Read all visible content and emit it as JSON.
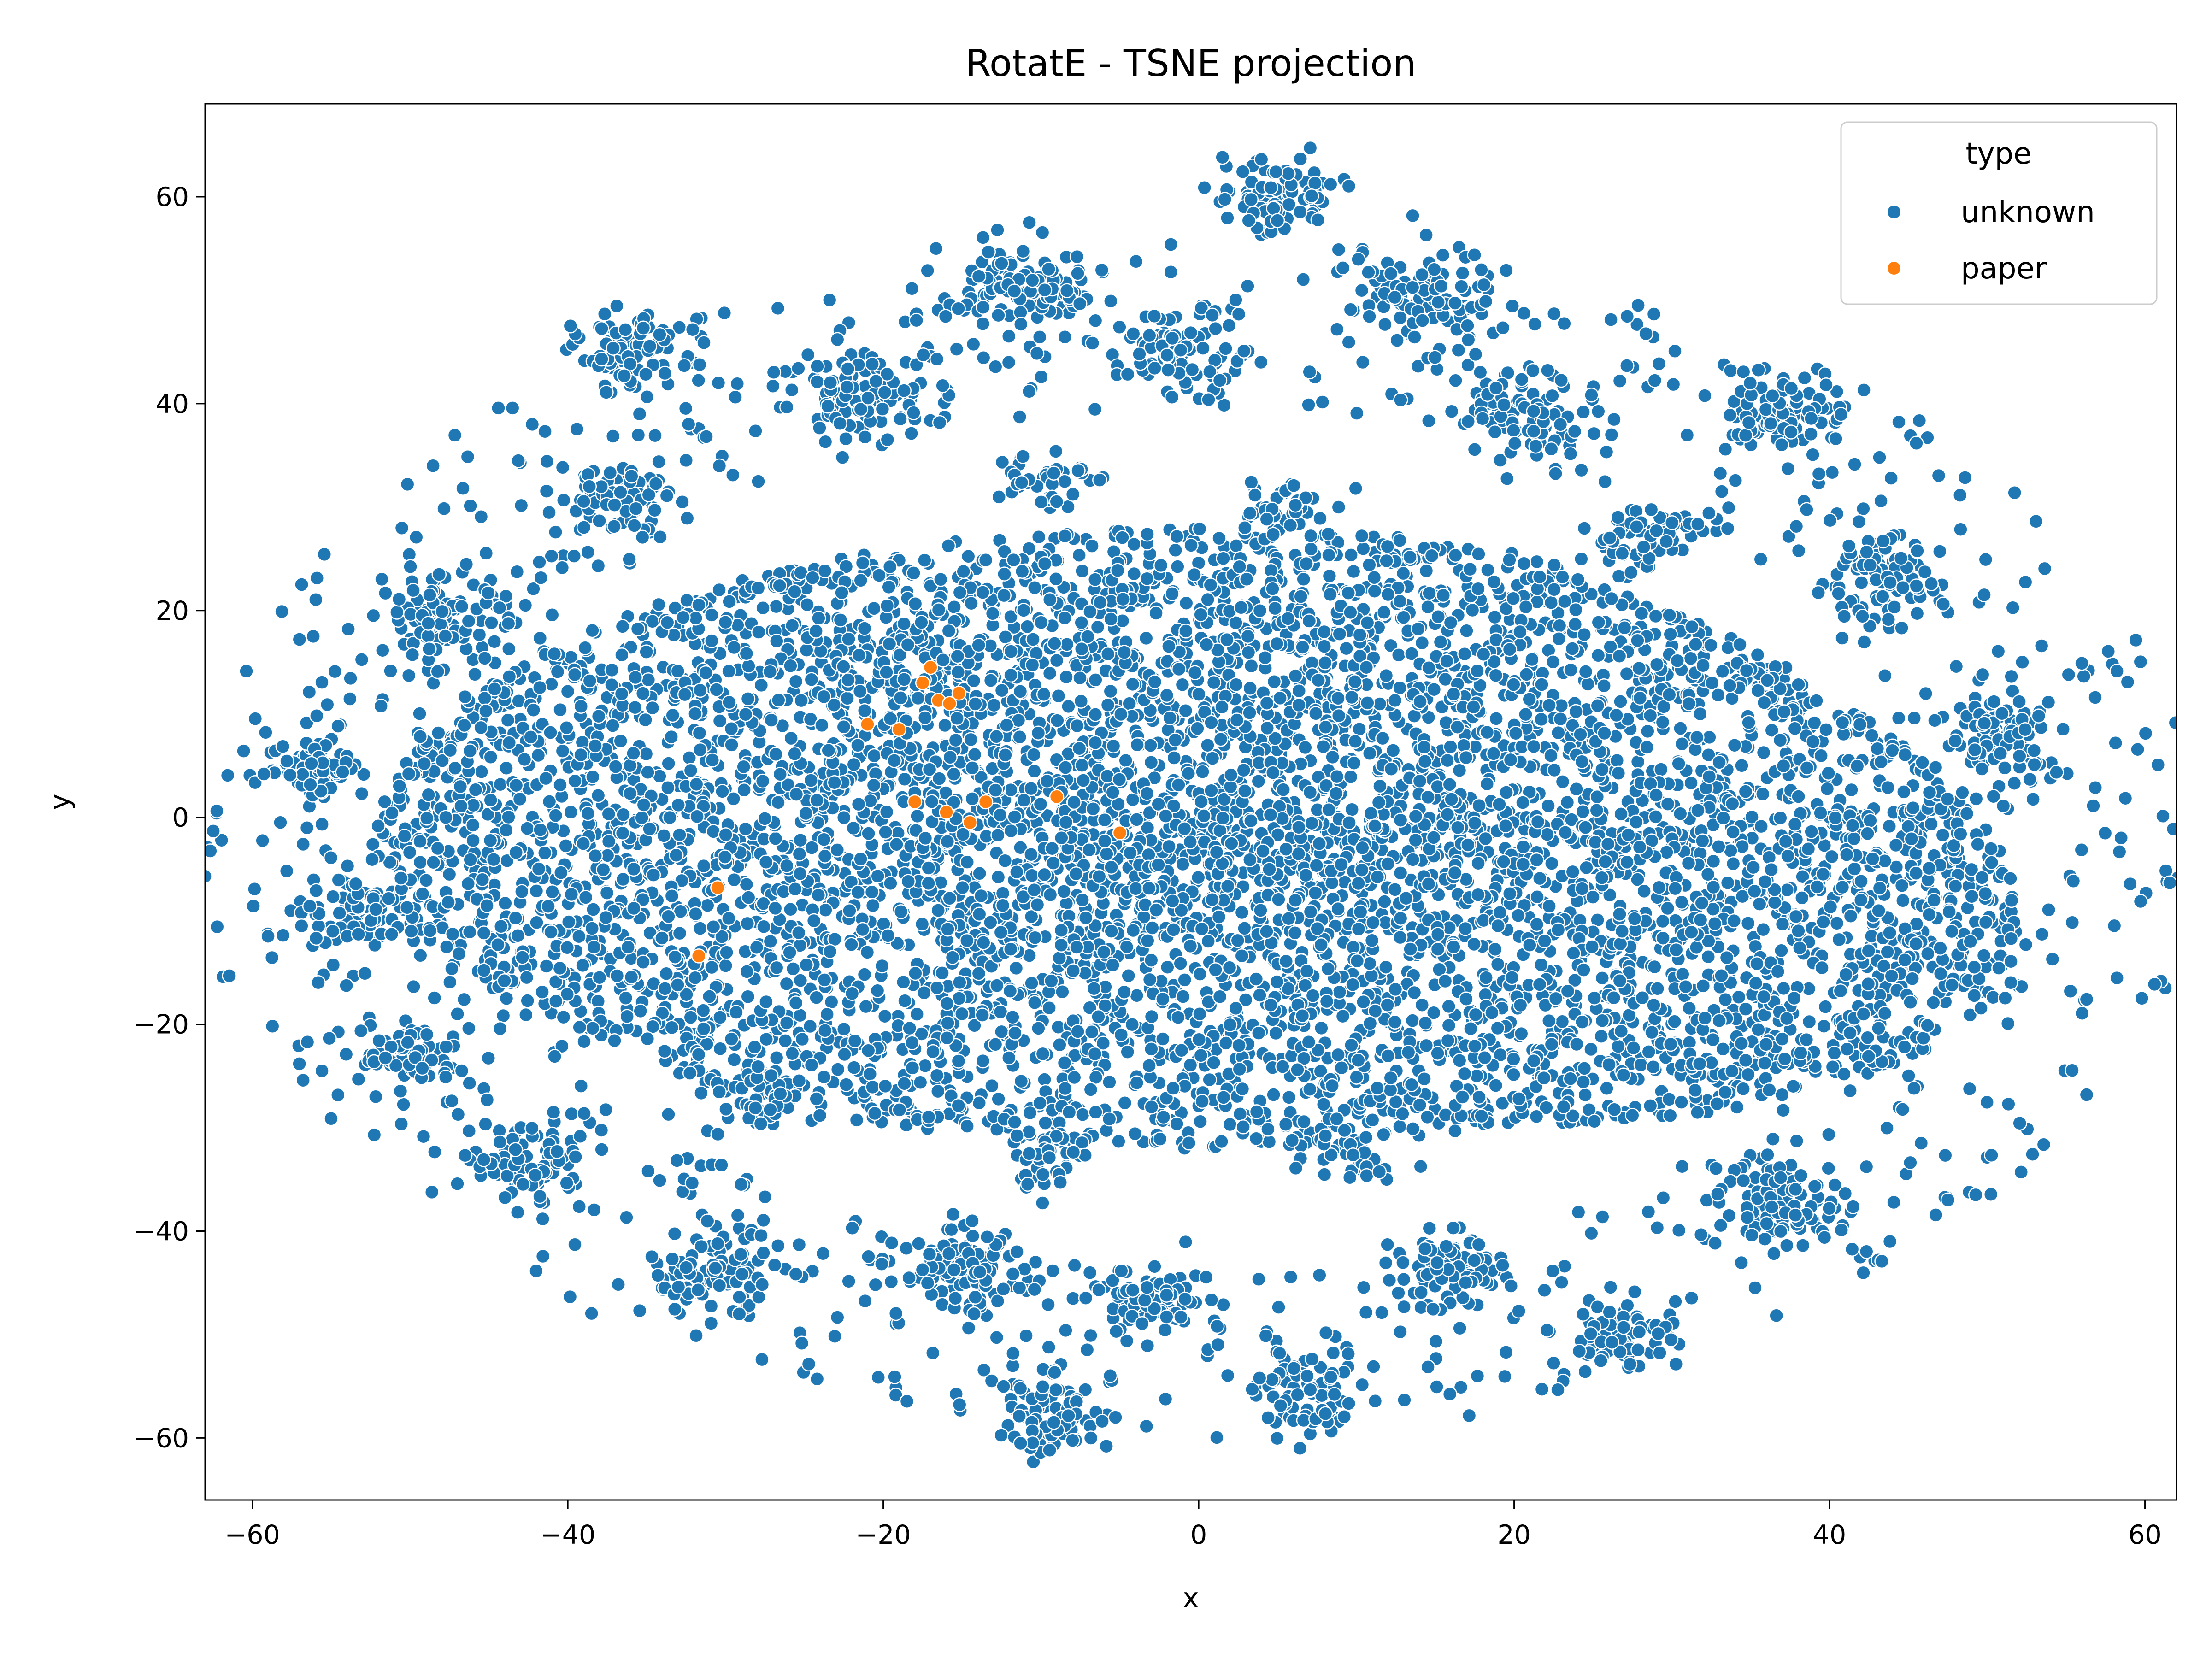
{
  "chart_data": {
    "type": "scatter",
    "title": "RotatE - TSNE projection",
    "xlabel": "x",
    "ylabel": "y",
    "xlim": [
      -63,
      62
    ],
    "ylim": [
      -66,
      69
    ],
    "xticks": [
      -60,
      -40,
      -20,
      0,
      20,
      40,
      60
    ],
    "yticks": [
      -60,
      -40,
      -20,
      0,
      20,
      40,
      60
    ],
    "xtick_labels": [
      "−60",
      "−40",
      "−20",
      "0",
      "20",
      "40",
      "60"
    ],
    "ytick_labels": [
      "−60",
      "−40",
      "−20",
      "0",
      "20",
      "40",
      "60"
    ],
    "grid": false,
    "legend": {
      "title": "type",
      "position": "top-right",
      "entries": [
        {
          "label": "unknown",
          "color": "#1f77b4"
        },
        {
          "label": "paper",
          "color": "#ff7f0e"
        }
      ]
    },
    "series": [
      {
        "name": "unknown",
        "color": "#1f77b4",
        "main_body": {
          "center": [
            0,
            -2
          ],
          "radius_x": 52,
          "radius_y": 30,
          "count": 9000
        },
        "clusters": [
          {
            "center": [
              5,
              60
            ],
            "spread": 2.0,
            "count": 90
          },
          {
            "center": [
              -11,
              51
            ],
            "spread": 2.5,
            "count": 110
          },
          {
            "center": [
              14,
              50
            ],
            "spread": 2.3,
            "count": 90
          },
          {
            "center": [
              -36,
              45
            ],
            "spread": 1.8,
            "count": 80
          },
          {
            "center": [
              -1,
              45
            ],
            "spread": 2.0,
            "count": 80
          },
          {
            "center": [
              -21,
              41
            ],
            "spread": 2.0,
            "count": 90
          },
          {
            "center": [
              21,
              39
            ],
            "spread": 2.3,
            "count": 90
          },
          {
            "center": [
              37,
              39
            ],
            "spread": 1.8,
            "count": 80
          },
          {
            "center": [
              -37,
              31
            ],
            "spread": 1.8,
            "count": 80
          },
          {
            "center": [
              28,
              27
            ],
            "spread": 1.8,
            "count": 70
          },
          {
            "center": [
              43,
              23
            ],
            "spread": 2.0,
            "count": 90
          },
          {
            "center": [
              -48,
              19
            ],
            "spread": 2.0,
            "count": 90
          },
          {
            "center": [
              51,
              8
            ],
            "spread": 1.8,
            "count": 80
          },
          {
            "center": [
              -56,
              5
            ],
            "spread": 1.5,
            "count": 70
          },
          {
            "center": [
              -53,
              -9
            ],
            "spread": 1.8,
            "count": 80
          },
          {
            "center": [
              -50,
              -23
            ],
            "spread": 1.5,
            "count": 70
          },
          {
            "center": [
              -42,
              -34
            ],
            "spread": 1.5,
            "count": 70
          },
          {
            "center": [
              -31,
              -44
            ],
            "spread": 2.0,
            "count": 90
          },
          {
            "center": [
              -15,
              -44
            ],
            "spread": 2.0,
            "count": 100
          },
          {
            "center": [
              -3,
              -47
            ],
            "spread": 1.8,
            "count": 80
          },
          {
            "center": [
              16,
              -44
            ],
            "spread": 1.8,
            "count": 80
          },
          {
            "center": [
              37,
              -37
            ],
            "spread": 2.0,
            "count": 90
          },
          {
            "center": [
              27,
              -50
            ],
            "spread": 1.6,
            "count": 70
          },
          {
            "center": [
              7,
              -56
            ],
            "spread": 1.7,
            "count": 80
          },
          {
            "center": [
              -9,
              -58
            ],
            "spread": 1.8,
            "count": 70
          },
          {
            "center": [
              -28,
              -27
            ],
            "spread": 1.8,
            "count": 60
          },
          {
            "center": [
              -10,
              -33
            ],
            "spread": 1.5,
            "count": 40
          },
          {
            "center": [
              10,
              -32
            ],
            "spread": 1.5,
            "count": 40
          },
          {
            "center": [
              -10,
              33
            ],
            "spread": 1.5,
            "count": 40
          },
          {
            "center": [
              5,
              30
            ],
            "spread": 1.5,
            "count": 40
          }
        ]
      },
      {
        "name": "paper",
        "color": "#ff7f0e",
        "points": [
          [
            -30.5,
            -6.8
          ],
          [
            -31.7,
            -13.4
          ],
          [
            -17.0,
            14.5
          ],
          [
            -16.5,
            11.3
          ],
          [
            -15.8,
            11.0
          ],
          [
            -17.5,
            13.0
          ],
          [
            -15.2,
            12.0
          ],
          [
            -21.0,
            9.0
          ],
          [
            -18.0,
            1.5
          ],
          [
            -16.0,
            0.5
          ],
          [
            -14.5,
            -0.5
          ],
          [
            -13.5,
            1.5
          ],
          [
            -9.0,
            2.0
          ],
          [
            -5.0,
            -1.5
          ],
          [
            -19.0,
            8.5
          ]
        ]
      }
    ]
  }
}
